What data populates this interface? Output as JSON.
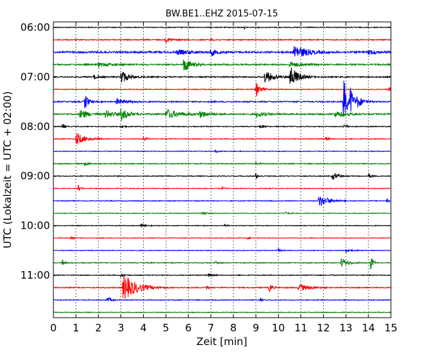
{
  "chart_data": {
    "type": "line",
    "title": "BW.BE1..EHZ 2015-07-15",
    "xlabel": "Zeit  [min]",
    "ylabel": "UTC (Lokalzeit = UTC + 02:00)",
    "xlim": [
      0,
      15
    ],
    "x_ticks": [
      "0",
      "1",
      "2",
      "3",
      "4",
      "5",
      "6",
      "7",
      "8",
      "9",
      "10",
      "11",
      "12",
      "13",
      "14",
      "15"
    ],
    "y_tick_labels": [
      "06:00",
      "07:00",
      "08:00",
      "09:00",
      "10:00",
      "11:00"
    ],
    "y_tick_traces": [
      0,
      4,
      8,
      12,
      16,
      20
    ],
    "grid": "vertical dotted",
    "trace_interval_min": 15,
    "start_time": "06:00",
    "colors": [
      "#000000",
      "#ff0000",
      "#0000ff",
      "#008000"
    ],
    "traces": [
      {
        "time": "06:00",
        "color": "#000000",
        "noise": 0.6,
        "events": [
          {
            "t": 8.5,
            "amp": 2,
            "dur": 0.1
          }
        ]
      },
      {
        "time": "06:15",
        "color": "#ff0000",
        "noise": 0.8,
        "events": [
          {
            "t": 5.0,
            "amp": 3,
            "dur": 0.6
          },
          {
            "t": 7.0,
            "amp": 2,
            "dur": 0.3
          }
        ]
      },
      {
        "time": "06:30",
        "color": "#0000ff",
        "noise": 1.3,
        "events": [
          {
            "t": 5.5,
            "amp": 3,
            "dur": 1.5
          },
          {
            "t": 7.0,
            "amp": 6,
            "dur": 0.4
          },
          {
            "t": 10.7,
            "amp": 12,
            "dur": 1.0
          },
          {
            "t": 14.0,
            "amp": 3,
            "dur": 1.0
          }
        ]
      },
      {
        "time": "06:45",
        "color": "#008000",
        "noise": 1.0,
        "events": [
          {
            "t": 5.8,
            "amp": 12,
            "dur": 0.6
          },
          {
            "t": 2.0,
            "amp": 3,
            "dur": 1.0
          },
          {
            "t": 10.5,
            "amp": 4,
            "dur": 1.0
          }
        ]
      },
      {
        "time": "07:00",
        "color": "#000000",
        "noise": 0.9,
        "events": [
          {
            "t": 3.0,
            "amp": 11,
            "dur": 0.6
          },
          {
            "t": 9.4,
            "amp": 10,
            "dur": 0.7
          },
          {
            "t": 10.5,
            "amp": 18,
            "dur": 0.7
          },
          {
            "t": 1.8,
            "amp": 3,
            "dur": 0.4
          }
        ]
      },
      {
        "time": "07:15",
        "color": "#ff0000",
        "noise": 0.6,
        "events": [
          {
            "t": 9.0,
            "amp": 11,
            "dur": 0.4
          },
          {
            "t": 14.9,
            "amp": 4,
            "dur": 0.2
          }
        ]
      },
      {
        "time": "07:30",
        "color": "#0000ff",
        "noise": 0.9,
        "events": [
          {
            "t": 1.4,
            "amp": 12,
            "dur": 0.3
          },
          {
            "t": 2.8,
            "amp": 4,
            "dur": 0.8
          },
          {
            "t": 12.9,
            "amp": 38,
            "dur": 0.3
          },
          {
            "t": 13.2,
            "amp": 20,
            "dur": 0.3
          },
          {
            "t": 13.5,
            "amp": 8,
            "dur": 0.6
          }
        ]
      },
      {
        "time": "07:45",
        "color": "#008000",
        "noise": 1.1,
        "events": [
          {
            "t": 1.2,
            "amp": 8,
            "dur": 0.6
          },
          {
            "t": 2.3,
            "amp": 6,
            "dur": 0.8
          },
          {
            "t": 3.0,
            "amp": 9,
            "dur": 0.6
          },
          {
            "t": 5.0,
            "amp": 7,
            "dur": 1.2
          },
          {
            "t": 6.5,
            "amp": 5,
            "dur": 0.8
          },
          {
            "t": 9.0,
            "amp": 4,
            "dur": 0.8
          },
          {
            "t": 12.5,
            "amp": 4,
            "dur": 1.0
          }
        ]
      },
      {
        "time": "08:00",
        "color": "#000000",
        "noise": 0.6,
        "events": [
          {
            "t": 0.4,
            "amp": 5,
            "dur": 0.2
          },
          {
            "t": 3.0,
            "amp": 3,
            "dur": 0.3
          },
          {
            "t": 9.2,
            "amp": 3,
            "dur": 0.3
          },
          {
            "t": 12.9,
            "amp": 3,
            "dur": 0.3
          }
        ]
      },
      {
        "time": "08:15",
        "color": "#ff0000",
        "noise": 0.6,
        "events": [
          {
            "t": 1.0,
            "amp": 10,
            "dur": 0.8
          },
          {
            "t": 4.0,
            "amp": 3,
            "dur": 0.3
          },
          {
            "t": 12.1,
            "amp": 3,
            "dur": 0.3
          }
        ]
      },
      {
        "time": "08:30",
        "color": "#0000ff",
        "noise": 0.5,
        "events": [
          {
            "t": 7.2,
            "amp": 2,
            "dur": 0.3
          }
        ]
      },
      {
        "time": "08:45",
        "color": "#008000",
        "noise": 0.7,
        "events": [
          {
            "t": 1.4,
            "amp": 3,
            "dur": 0.3
          },
          {
            "t": 9.0,
            "amp": 2,
            "dur": 0.3
          }
        ]
      },
      {
        "time": "09:00",
        "color": "#000000",
        "noise": 0.6,
        "events": [
          {
            "t": 9.0,
            "amp": 5,
            "dur": 0.2
          },
          {
            "t": 12.4,
            "amp": 6,
            "dur": 0.5
          },
          {
            "t": 14.0,
            "amp": 3,
            "dur": 0.3
          }
        ]
      },
      {
        "time": "09:15",
        "color": "#ff0000",
        "noise": 0.5,
        "events": [
          {
            "t": 1.1,
            "amp": 5,
            "dur": 0.2
          },
          {
            "t": 7.5,
            "amp": 2,
            "dur": 0.2
          }
        ]
      },
      {
        "time": "09:30",
        "color": "#0000ff",
        "noise": 0.6,
        "events": [
          {
            "t": 11.8,
            "amp": 9,
            "dur": 0.9
          },
          {
            "t": 14.8,
            "amp": 3,
            "dur": 0.2
          }
        ]
      },
      {
        "time": "09:45",
        "color": "#008000",
        "noise": 0.5,
        "events": [
          {
            "t": 6.6,
            "amp": 3,
            "dur": 0.4
          },
          {
            "t": 10.3,
            "amp": 2,
            "dur": 0.3
          }
        ]
      },
      {
        "time": "10:00",
        "color": "#000000",
        "noise": 0.5,
        "events": [
          {
            "t": 3.9,
            "amp": 3,
            "dur": 0.3
          },
          {
            "t": 7.6,
            "amp": 2,
            "dur": 0.2
          }
        ]
      },
      {
        "time": "10:15",
        "color": "#ff0000",
        "noise": 0.5,
        "events": [
          {
            "t": 0.8,
            "amp": 3,
            "dur": 0.2
          },
          {
            "t": 8.6,
            "amp": 2,
            "dur": 0.2
          }
        ]
      },
      {
        "time": "10:30",
        "color": "#0000ff",
        "noise": 0.5,
        "events": [
          {
            "t": 10.0,
            "amp": 3,
            "dur": 0.2
          },
          {
            "t": 13.0,
            "amp": 3,
            "dur": 0.5
          }
        ]
      },
      {
        "time": "10:45",
        "color": "#008000",
        "noise": 0.6,
        "events": [
          {
            "t": 0.4,
            "amp": 5,
            "dur": 0.2
          },
          {
            "t": 12.8,
            "amp": 7,
            "dur": 0.6
          },
          {
            "t": 14.1,
            "amp": 11,
            "dur": 0.2
          },
          {
            "t": 7.2,
            "amp": 2,
            "dur": 0.3
          }
        ]
      },
      {
        "time": "11:00",
        "color": "#000000",
        "noise": 0.6,
        "events": [
          {
            "t": 3.0,
            "amp": 3,
            "dur": 0.3
          },
          {
            "t": 6.9,
            "amp": 3,
            "dur": 0.3
          }
        ]
      },
      {
        "time": "11:15",
        "color": "#ff0000",
        "noise": 0.8,
        "events": [
          {
            "t": 3.1,
            "amp": 20,
            "dur": 1.2
          },
          {
            "t": 6.8,
            "amp": 4,
            "dur": 0.2
          },
          {
            "t": 9.6,
            "amp": 6,
            "dur": 0.3
          },
          {
            "t": 10.9,
            "amp": 6,
            "dur": 0.8
          }
        ]
      },
      {
        "time": "11:30",
        "color": "#0000ff",
        "noise": 0.6,
        "events": [
          {
            "t": 2.4,
            "amp": 5,
            "dur": 0.3
          },
          {
            "t": 9.2,
            "amp": 3,
            "dur": 0.2
          }
        ]
      },
      {
        "time": "11:45",
        "color": "#008000",
        "noise": 0.5,
        "events": []
      }
    ]
  }
}
